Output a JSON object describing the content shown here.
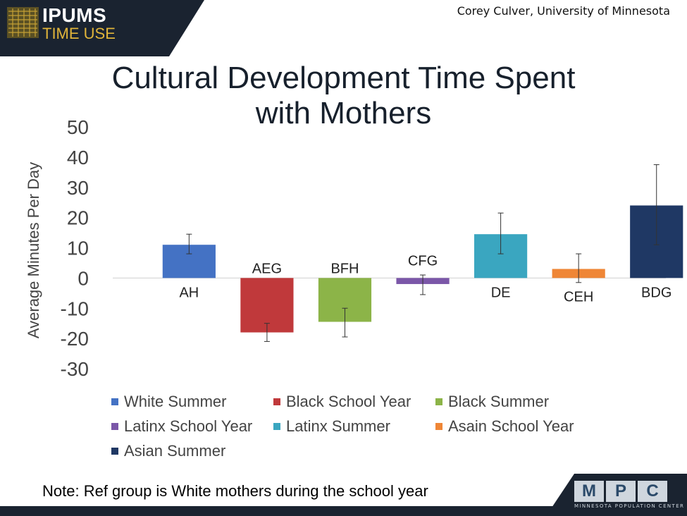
{
  "header": {
    "logo_line1": "IPUMS",
    "logo_line2": "TIME USE",
    "author": "Corey Culver, University of Minnesota"
  },
  "footer": {
    "note": "Note: Ref group is White mothers during the school year",
    "mpc_letters": [
      "M",
      "P",
      "C"
    ],
    "mpc_subtitle": "MINNESOTA POPULATION CENTER"
  },
  "colors": {
    "banner": "#1a2330",
    "accent_gold": "#e0b43a",
    "title": "#17202c"
  },
  "chart_data": {
    "type": "bar",
    "title": "Cultural Development Time Spent with Mothers",
    "title_lines": [
      "Cultural Development Time Spent",
      "with Mothers"
    ],
    "ylabel": "Average Minutes Per Day",
    "xlabel": "",
    "ylim": [
      -30,
      50
    ],
    "yticks": [
      50,
      40,
      30,
      20,
      10,
      0,
      -10,
      -20,
      -30
    ],
    "grid": false,
    "legend_position": "bottom",
    "series": [
      {
        "name": "White Summer",
        "value": 11,
        "err_low": 8,
        "err_high": 14.5,
        "label": "AH",
        "color": "#4472c4"
      },
      {
        "name": "Black School Year",
        "value": -18,
        "err_low": -21,
        "err_high": -15,
        "label": "AEG",
        "color": "#c0393b"
      },
      {
        "name": "Black Summer",
        "value": -14.5,
        "err_low": -19.5,
        "err_high": -10,
        "label": "BFH",
        "color": "#8cb448"
      },
      {
        "name": "Latinx School Year",
        "value": -2,
        "err_low": -5.5,
        "err_high": 1,
        "label": "CFG",
        "color": "#7b57a8"
      },
      {
        "name": "Latinx Summer",
        "value": 14.5,
        "err_low": 8,
        "err_high": 21.5,
        "label": "DE",
        "color": "#3aa6c0"
      },
      {
        "name": "Asain School Year",
        "value": 3,
        "err_low": -1.5,
        "err_high": 8,
        "label": "CEH",
        "color": "#ef8636"
      },
      {
        "name": "Asian Summer",
        "value": 24,
        "err_low": 11,
        "err_high": 37.5,
        "label": "BDG",
        "color": "#1f3864"
      }
    ]
  }
}
